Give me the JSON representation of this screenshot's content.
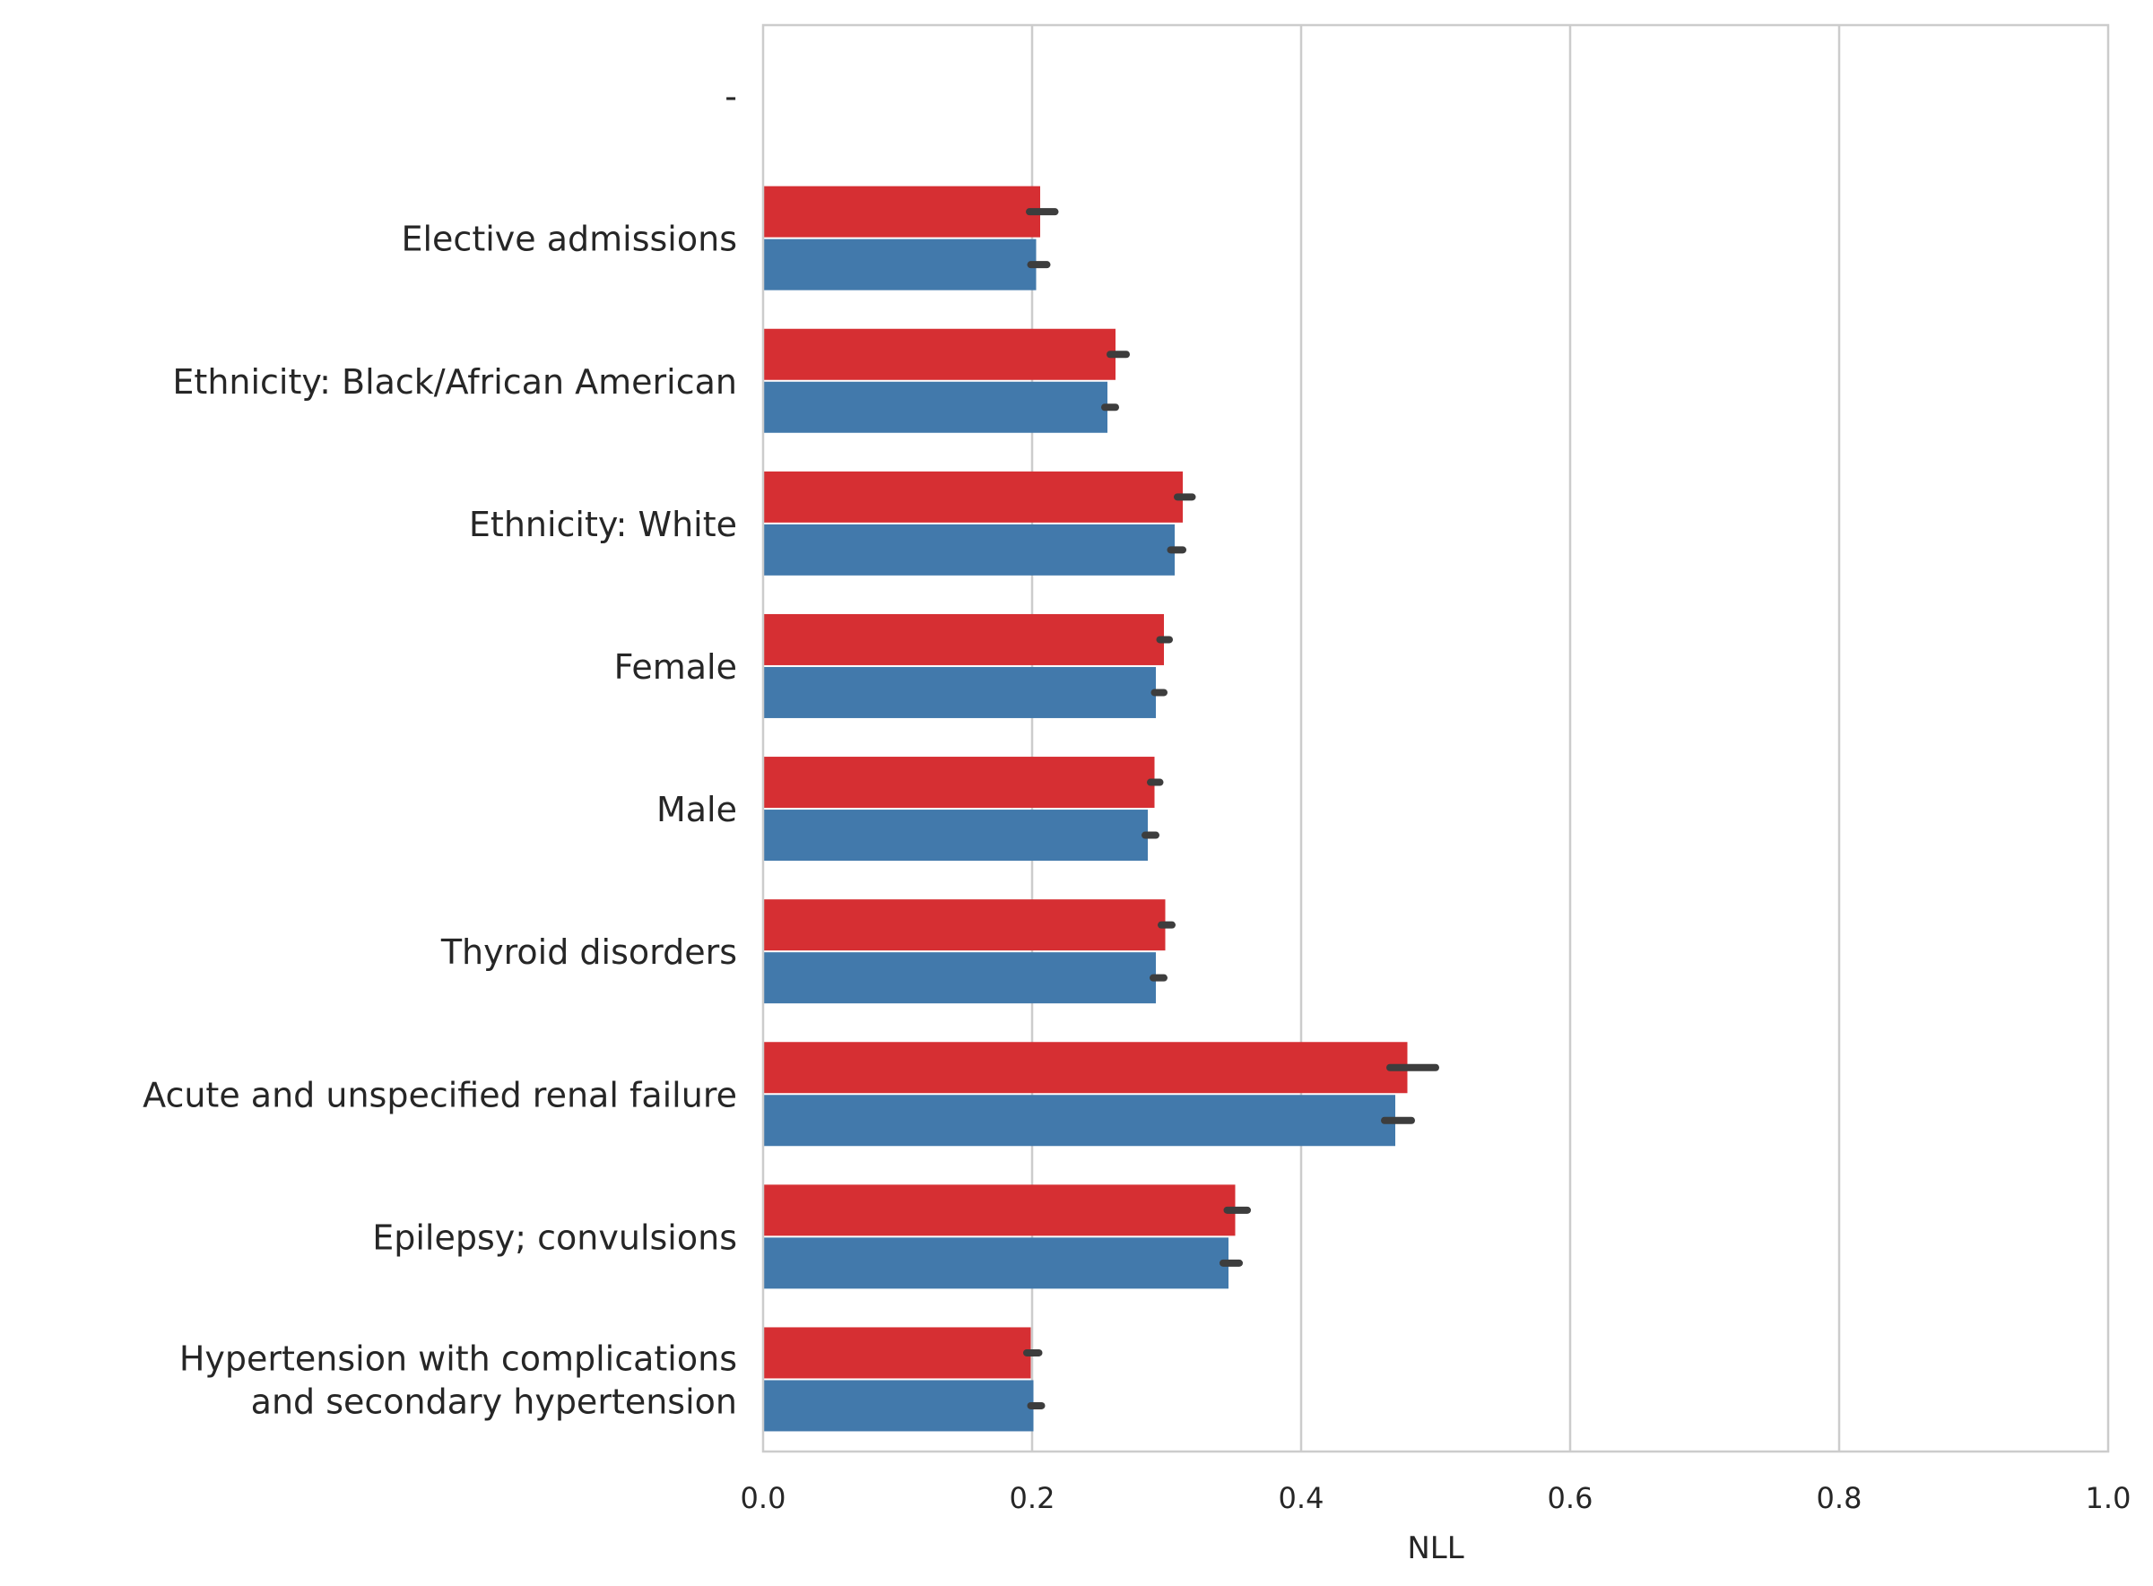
{
  "chart_data": {
    "type": "bar",
    "orientation": "horizontal",
    "xlabel": "NLL",
    "ylabel": "",
    "xlim": [
      0.0,
      1.0
    ],
    "xticks": [
      0.0,
      0.2,
      0.4,
      0.6,
      0.8,
      1.0
    ],
    "xtick_labels": [
      "0.0",
      "0.2",
      "0.4",
      "0.6",
      "0.8",
      "1.0"
    ],
    "grid": "vertical",
    "legend": "none",
    "categories": [
      "-",
      "Elective admissions",
      "Ethnicity: Black/African American",
      "Ethnicity: White",
      "Female",
      "Male",
      "Thyroid disorders",
      "Acute and unspecified renal failure",
      "Epilepsy; convulsions",
      "Hypertension with complications\nand secondary hypertension"
    ],
    "series": [
      {
        "color": "#d62f33",
        "values": [
          null,
          0.206,
          0.262,
          0.312,
          0.298,
          0.291,
          0.299,
          0.479,
          0.351,
          0.199
        ],
        "error_low": [
          null,
          0.198,
          0.258,
          0.308,
          0.295,
          0.288,
          0.296,
          0.466,
          0.345,
          0.196
        ],
        "error_high": [
          null,
          0.217,
          0.27,
          0.319,
          0.302,
          0.295,
          0.304,
          0.5,
          0.36,
          0.205
        ]
      },
      {
        "color": "#4279ab",
        "values": [
          null,
          0.203,
          0.256,
          0.306,
          0.292,
          0.286,
          0.292,
          0.47,
          0.346,
          0.201
        ],
        "error_low": [
          null,
          0.199,
          0.254,
          0.303,
          0.291,
          0.284,
          0.29,
          0.462,
          0.342,
          0.199
        ],
        "error_high": [
          null,
          0.211,
          0.262,
          0.312,
          0.298,
          0.292,
          0.298,
          0.482,
          0.354,
          0.207
        ]
      }
    ]
  }
}
